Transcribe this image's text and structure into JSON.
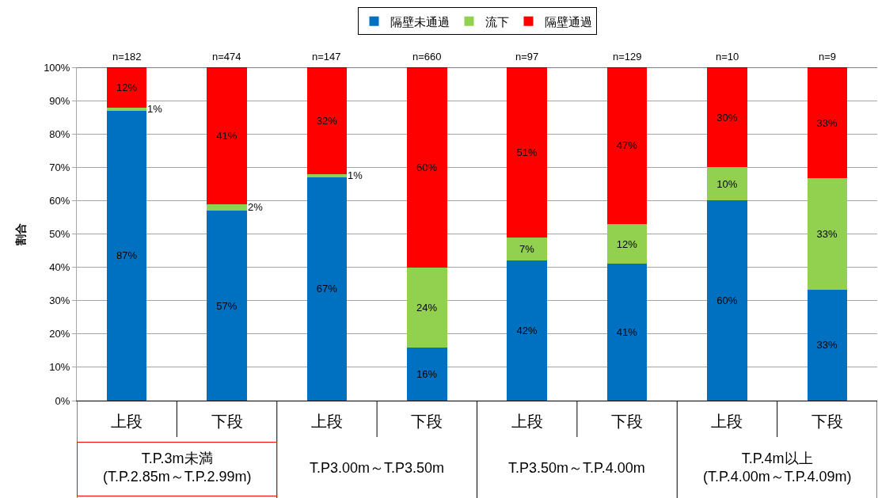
{
  "chart_data": {
    "type": "bar",
    "stacked": true,
    "ylabel": "割合",
    "categories": [
      "上段",
      "下段",
      "上段",
      "下段",
      "上段",
      "下段",
      "上段",
      "下段"
    ],
    "series": [
      {
        "name": "隔壁未通過",
        "color": "#0070c0",
        "values": [
          87,
          57,
          67,
          16,
          42,
          41,
          60,
          33.3
        ],
        "value_labels": [
          "87%",
          "57%",
          "67%",
          "16%",
          "42%",
          "41%",
          "60%",
          "33%"
        ]
      },
      {
        "name": "流下",
        "color": "#92d050",
        "values": [
          1,
          2,
          1,
          24,
          7,
          12,
          10,
          33.4
        ],
        "value_labels": [
          "1%",
          "2%",
          "1%",
          "24%",
          "7%",
          "12%",
          "10%",
          "33%"
        ]
      },
      {
        "name": "隔壁通過",
        "color": "#ff0000",
        "values": [
          12,
          41,
          32,
          60,
          51,
          47,
          30,
          33.3
        ],
        "value_labels": [
          "12%",
          "41%",
          "32%",
          "60%",
          "51%",
          "47%",
          "30%",
          "33%"
        ]
      }
    ],
    "ylim": [
      0,
      100
    ],
    "yticks": [
      {
        "value": 0,
        "label": "0%"
      },
      {
        "value": 10,
        "label": "10%"
      },
      {
        "value": 20,
        "label": "20%"
      },
      {
        "value": 30,
        "label": "30%"
      },
      {
        "value": 40,
        "label": "40%"
      },
      {
        "value": 50,
        "label": "50%"
      },
      {
        "value": 60,
        "label": "60%"
      },
      {
        "value": 70,
        "label": "70%"
      },
      {
        "value": 80,
        "label": "80%"
      },
      {
        "value": 90,
        "label": "90%"
      },
      {
        "value": 100,
        "label": "100%"
      }
    ],
    "grid": "y",
    "legend": "top",
    "annotations": [
      {
        "text": "n=182",
        "y": 100
      },
      {
        "text": "n=474",
        "y": 100
      },
      {
        "text": "n=147",
        "y": 100
      },
      {
        "text": "n=660",
        "y": 100
      },
      {
        "text": "n=97",
        "y": 100
      },
      {
        "text": "n=129",
        "y": 100
      },
      {
        "text": "n=10",
        "y": 100
      },
      {
        "text": "n=9",
        "y": 100
      },
      "T.P.3m未満\n(T.P.2.85m～T.P.2.99m)",
      "T.P3.00m～T.P3.50m",
      "T.P3.50m～T.P.4.00m",
      "T.P.4m以上\n(T.P.4.00m～T.P.4.09m)"
    ]
  }
}
